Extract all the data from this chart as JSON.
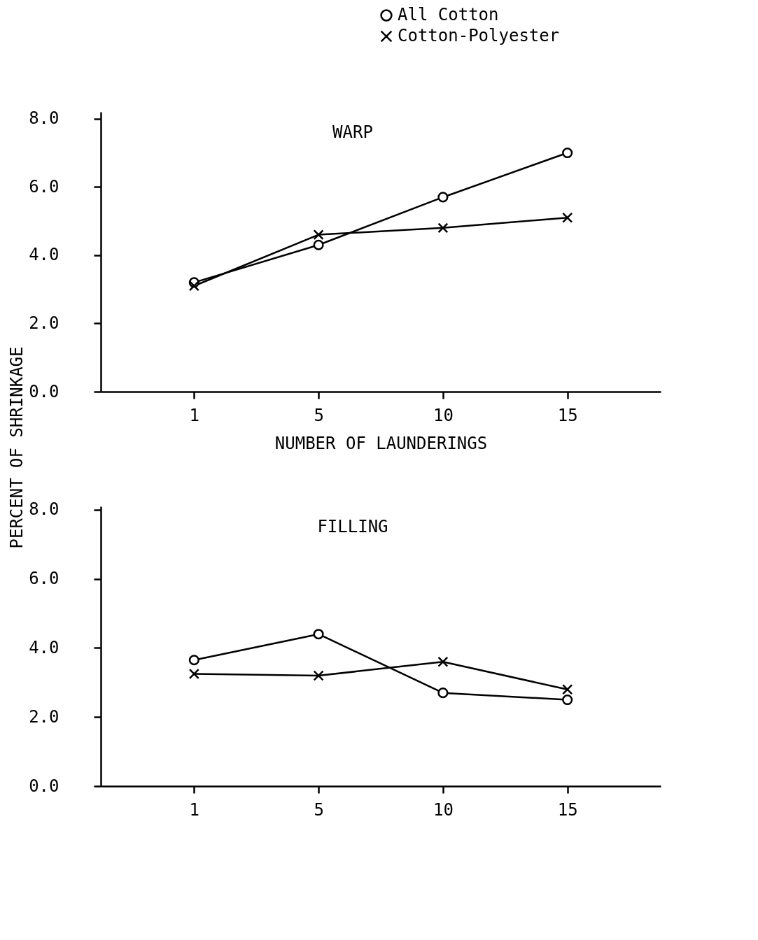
{
  "chart_data": [
    {
      "type": "line",
      "title": "WARP",
      "xlabel": "NUMBER OF LAUNDERINGS",
      "ylabel": "PERCENT OF SHRINKAGE",
      "categories": [
        "1",
        "5",
        "10",
        "15"
      ],
      "series": [
        {
          "name": "All Cotton",
          "color": "#000000",
          "marker": "circle",
          "values": [
            3.2,
            4.3,
            5.7,
            7.0
          ]
        },
        {
          "name": "Cotton-Polyester",
          "color": "#000000",
          "marker": "cross",
          "values": [
            3.1,
            4.6,
            4.8,
            5.1
          ]
        }
      ],
      "ylim": [
        0,
        8.2
      ],
      "yticks": [
        {
          "value": 0,
          "label": "0.0"
        },
        {
          "value": 2,
          "label": "2.0"
        },
        {
          "value": 4,
          "label": "4.0"
        },
        {
          "value": 6,
          "label": "6.0"
        },
        {
          "value": 8,
          "label": "8.0"
        }
      ],
      "grid": false,
      "legend": "top right"
    },
    {
      "type": "line",
      "title": "FILLING",
      "categories": [
        "1",
        "5",
        "10",
        "15"
      ],
      "series": [
        {
          "name": "All Cotton",
          "color": "#000000",
          "marker": "circle",
          "values": [
            3.65,
            4.4,
            2.7,
            2.5
          ]
        },
        {
          "name": "Cotton-Polyester",
          "color": "#000000",
          "marker": "cross",
          "values": [
            3.25,
            3.2,
            3.6,
            2.8
          ]
        }
      ],
      "ylim": [
        0,
        8.1
      ],
      "yticks": [
        {
          "value": 0,
          "label": "0.0"
        },
        {
          "value": 2,
          "label": "2.0"
        },
        {
          "value": 4,
          "label": "4.0"
        },
        {
          "value": 6,
          "label": "6.0"
        },
        {
          "value": 8,
          "label": "8.0"
        }
      ],
      "grid": false
    }
  ]
}
